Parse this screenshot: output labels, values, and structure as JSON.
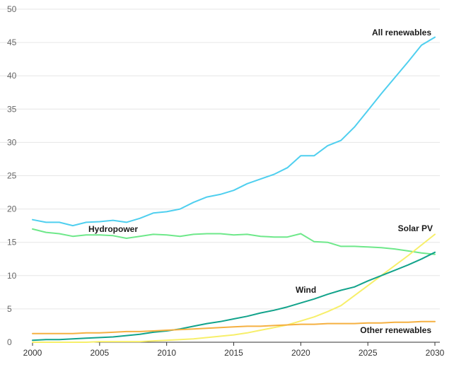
{
  "chart_data": {
    "type": "line",
    "title": "",
    "xlabel": "",
    "ylabel": "",
    "xlim": [
      2000,
      2030
    ],
    "ylim": [
      0,
      50
    ],
    "grid": true,
    "x_ticks": [
      "2000",
      "2005",
      "2010",
      "2015",
      "2020",
      "2025",
      "2030"
    ],
    "y_ticks": [
      "0",
      "5",
      "10",
      "15",
      "20",
      "25",
      "30",
      "35",
      "40",
      "45",
      "50"
    ],
    "x": [
      2000,
      2001,
      2002,
      2003,
      2004,
      2005,
      2006,
      2007,
      2008,
      2009,
      2010,
      2011,
      2012,
      2013,
      2014,
      2015,
      2016,
      2017,
      2018,
      2019,
      2020,
      2021,
      2022,
      2023,
      2024,
      2025,
      2026,
      2027,
      2028,
      2029,
      2030
    ],
    "series": [
      {
        "name": "All renewables",
        "color": "#4fcfef",
        "values": [
          18.4,
          18.0,
          18.0,
          17.5,
          18.0,
          18.1,
          18.3,
          18.0,
          18.6,
          19.4,
          19.6,
          20.0,
          21.0,
          21.8,
          22.2,
          22.8,
          23.8,
          24.5,
          25.2,
          26.2,
          28.0,
          28.0,
          29.5,
          30.3,
          32.3,
          34.8,
          37.3,
          39.7,
          42.1,
          44.6,
          45.8
        ]
      },
      {
        "name": "Hydropower",
        "color": "#6ee88a",
        "values": [
          17.0,
          16.5,
          16.3,
          15.9,
          16.1,
          16.1,
          16.0,
          15.6,
          15.9,
          16.2,
          16.1,
          15.9,
          16.2,
          16.3,
          16.3,
          16.1,
          16.2,
          15.9,
          15.8,
          15.8,
          16.3,
          15.1,
          15.0,
          14.4,
          14.4,
          14.3,
          14.2,
          14.0,
          13.7,
          13.4,
          13.2
        ]
      },
      {
        "name": "Solar PV",
        "color": "#f7ef6a",
        "values": [
          0.0,
          0.0,
          0.0,
          0.0,
          0.0,
          0.1,
          0.1,
          0.1,
          0.1,
          0.2,
          0.3,
          0.4,
          0.5,
          0.7,
          0.9,
          1.1,
          1.4,
          1.8,
          2.2,
          2.6,
          3.2,
          3.8,
          4.6,
          5.5,
          7.0,
          8.5,
          10.0,
          11.5,
          13.0,
          14.6,
          16.2
        ]
      },
      {
        "name": "Wind",
        "color": "#12a38b",
        "values": [
          0.3,
          0.4,
          0.4,
          0.5,
          0.6,
          0.7,
          0.8,
          1.0,
          1.2,
          1.5,
          1.7,
          2.0,
          2.4,
          2.8,
          3.1,
          3.5,
          3.9,
          4.4,
          4.8,
          5.3,
          5.9,
          6.5,
          7.2,
          7.8,
          8.3,
          9.2,
          10.0,
          10.8,
          11.6,
          12.5,
          13.5
        ]
      },
      {
        "name": "Other renewables",
        "color": "#f5b041",
        "values": [
          1.3,
          1.3,
          1.3,
          1.3,
          1.4,
          1.4,
          1.5,
          1.6,
          1.6,
          1.7,
          1.8,
          1.9,
          2.0,
          2.1,
          2.2,
          2.3,
          2.4,
          2.4,
          2.5,
          2.6,
          2.7,
          2.7,
          2.8,
          2.8,
          2.8,
          2.9,
          2.9,
          3.0,
          3.0,
          3.1,
          3.1
        ]
      }
    ],
    "labels": {
      "all_renewables": "All renewables",
      "hydropower": "Hydropower",
      "solar_pv": "Solar PV",
      "wind": "Wind",
      "other_renewables": "Other renewables"
    }
  }
}
